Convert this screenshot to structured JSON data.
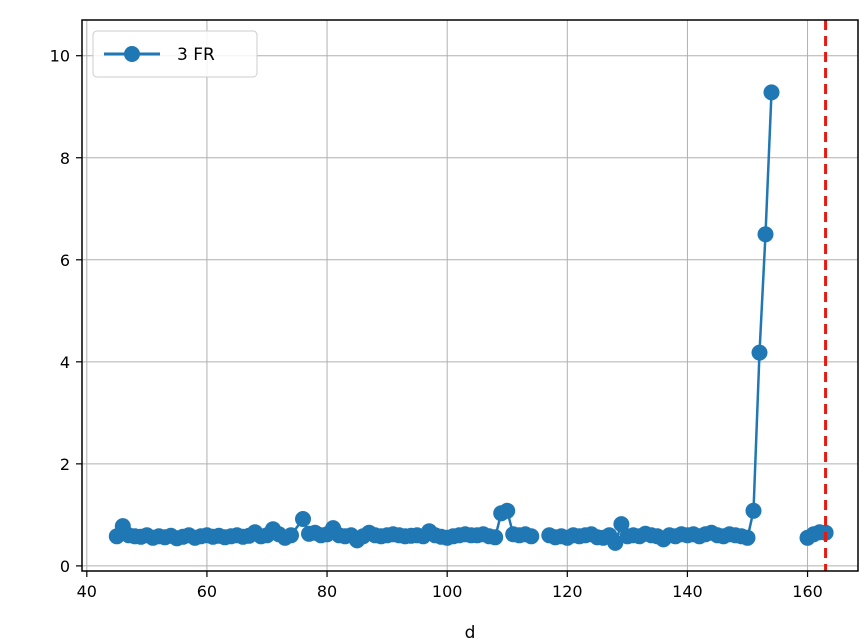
{
  "chart_data": {
    "type": "line",
    "title": "",
    "xlabel": "d",
    "ylabel": "",
    "xlim": [
      39.2,
      168.4
    ],
    "ylim": [
      -0.1,
      10.7
    ],
    "xticks": [
      40,
      60,
      80,
      100,
      120,
      140,
      160
    ],
    "yticks": [
      0,
      2,
      4,
      6,
      8,
      10
    ],
    "grid": true,
    "legend_position": "top-left",
    "colors": {
      "series": "#1f77b4",
      "vline": "#e8190f",
      "grid": "#b0b0b0"
    },
    "series": [
      {
        "name": "3 FR",
        "segments": [
          [
            [
              45,
              0.58
            ],
            [
              46,
              0.78
            ],
            [
              47,
              0.6
            ],
            [
              48,
              0.58
            ],
            [
              49,
              0.57
            ],
            [
              50,
              0.6
            ],
            [
              51,
              0.55
            ],
            [
              52,
              0.58
            ],
            [
              53,
              0.56
            ],
            [
              54,
              0.59
            ],
            [
              55,
              0.54
            ],
            [
              56,
              0.57
            ],
            [
              57,
              0.6
            ],
            [
              58,
              0.55
            ],
            [
              59,
              0.58
            ],
            [
              60,
              0.6
            ],
            [
              61,
              0.57
            ],
            [
              62,
              0.59
            ],
            [
              63,
              0.56
            ],
            [
              64,
              0.58
            ],
            [
              65,
              0.6
            ],
            [
              66,
              0.57
            ],
            [
              67,
              0.59
            ],
            [
              68,
              0.66
            ],
            [
              69,
              0.58
            ],
            [
              70,
              0.6
            ],
            [
              71,
              0.72
            ],
            [
              72,
              0.62
            ],
            [
              73,
              0.55
            ],
            [
              74,
              0.6
            ],
            [
              76,
              0.92
            ],
            [
              77,
              0.63
            ],
            [
              78,
              0.65
            ],
            [
              79,
              0.6
            ],
            [
              80,
              0.62
            ],
            [
              81,
              0.74
            ],
            [
              82,
              0.6
            ],
            [
              83,
              0.58
            ],
            [
              84,
              0.6
            ],
            [
              85,
              0.5
            ],
            [
              86,
              0.58
            ],
            [
              87,
              0.65
            ],
            [
              88,
              0.6
            ],
            [
              89,
              0.58
            ],
            [
              90,
              0.6
            ],
            [
              91,
              0.62
            ],
            [
              92,
              0.6
            ],
            [
              93,
              0.58
            ],
            [
              94,
              0.59
            ],
            [
              95,
              0.6
            ],
            [
              96,
              0.58
            ],
            [
              97,
              0.68
            ],
            [
              98,
              0.6
            ],
            [
              99,
              0.57
            ],
            [
              100,
              0.55
            ],
            [
              101,
              0.58
            ],
            [
              102,
              0.6
            ],
            [
              103,
              0.62
            ],
            [
              104,
              0.6
            ],
            [
              105,
              0.6
            ],
            [
              106,
              0.62
            ],
            [
              107,
              0.58
            ],
            [
              108,
              0.56
            ],
            [
              109,
              1.03
            ],
            [
              110,
              1.08
            ],
            [
              111,
              0.62
            ],
            [
              112,
              0.6
            ],
            [
              113,
              0.62
            ],
            [
              114,
              0.58
            ]
          ],
          [
            [
              117,
              0.6
            ],
            [
              118,
              0.56
            ],
            [
              119,
              0.58
            ],
            [
              120,
              0.55
            ],
            [
              121,
              0.6
            ],
            [
              122,
              0.58
            ],
            [
              123,
              0.6
            ],
            [
              124,
              0.62
            ],
            [
              125,
              0.56
            ],
            [
              126,
              0.55
            ],
            [
              127,
              0.6
            ],
            [
              128,
              0.45
            ],
            [
              129,
              0.82
            ],
            [
              130,
              0.58
            ],
            [
              131,
              0.6
            ],
            [
              132,
              0.58
            ],
            [
              133,
              0.63
            ],
            [
              134,
              0.6
            ],
            [
              135,
              0.58
            ],
            [
              136,
              0.52
            ],
            [
              137,
              0.6
            ],
            [
              138,
              0.58
            ],
            [
              139,
              0.62
            ],
            [
              140,
              0.6
            ],
            [
              141,
              0.62
            ],
            [
              142,
              0.58
            ],
            [
              143,
              0.62
            ],
            [
              144,
              0.65
            ],
            [
              145,
              0.6
            ],
            [
              146,
              0.58
            ],
            [
              147,
              0.62
            ],
            [
              148,
              0.6
            ],
            [
              149,
              0.58
            ],
            [
              150,
              0.55
            ],
            [
              151,
              1.08
            ],
            [
              152,
              4.18
            ],
            [
              153,
              6.5
            ],
            [
              154,
              9.28
            ]
          ],
          [
            [
              160,
              0.55
            ],
            [
              161,
              0.62
            ],
            [
              162,
              0.66
            ],
            [
              163,
              0.65
            ]
          ]
        ]
      }
    ],
    "vline": {
      "x": 163,
      "style": "dashed"
    }
  }
}
